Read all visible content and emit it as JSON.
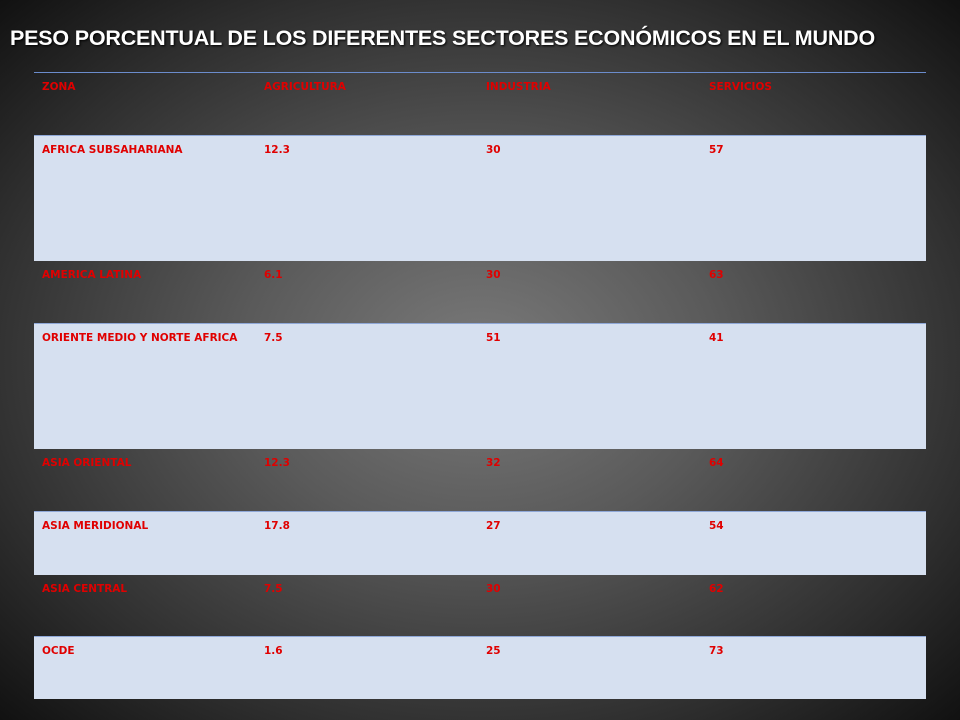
{
  "title": "PESO PORCENTUAL DE LOS DIFERENTES SECTORES ECONÓMICOS  EN EL MUNDO",
  "colors": {
    "text_red": "#e00000",
    "row_light": "#d6e0f0",
    "title_white": "#ffffff"
  },
  "chart_data": {
    "type": "table",
    "title": "PESO PORCENTUAL DE LOS DIFERENTES SECTORES ECONÓMICOS  EN EL MUNDO",
    "columns": [
      "ZONA",
      "AGRICULTURA",
      "INDUSTRIA",
      "SERVICIOS"
    ],
    "rows": [
      [
        "AFRICA SUBSAHARIANA",
        "12.3",
        "30",
        "57"
      ],
      [
        "AMERICA LATINA",
        "6.1",
        "30",
        "63"
      ],
      [
        "ORIENTE MEDIO Y NORTE AFRICA",
        "7.5",
        "51",
        "41"
      ],
      [
        "ASIA ORIENTAL",
        "12.3",
        "32",
        "64"
      ],
      [
        "ASIA MERIDIONAL",
        "17.8",
        "27",
        "54"
      ],
      [
        "ASIA CENTRAL",
        "7.5",
        "30",
        "62"
      ],
      [
        "OCDE",
        "1.6",
        "25",
        "73"
      ]
    ]
  }
}
